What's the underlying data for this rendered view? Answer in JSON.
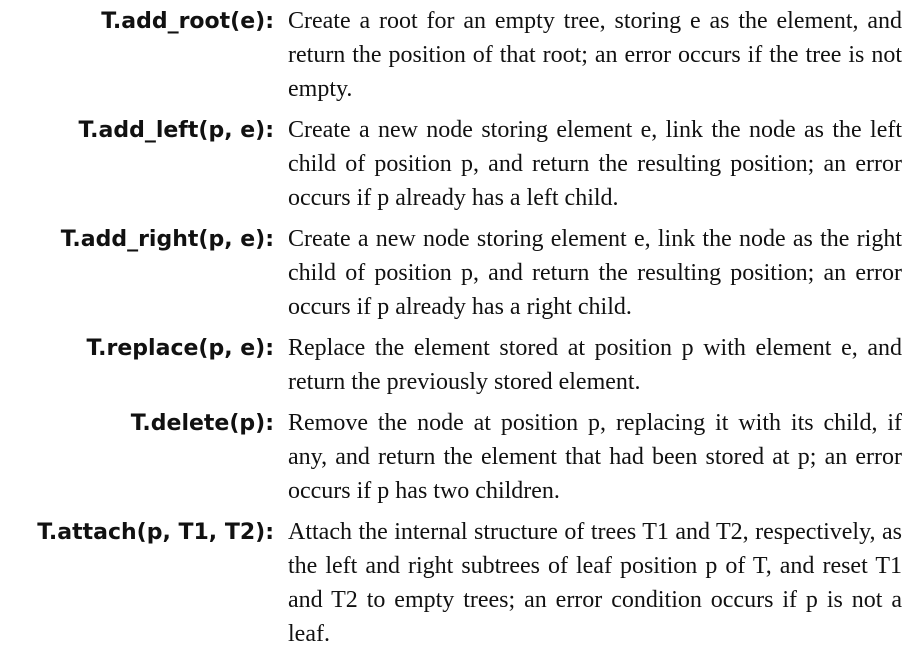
{
  "entries": [
    {
      "term": "T.add_root(e):",
      "description": "Create a root for an empty tree, storing e as the element, and return the position of that root; an error occurs if the tree is not empty."
    },
    {
      "term": "T.add_left(p, e):",
      "description": "Create a new node storing element e, link the node as the left child of position p, and return the resulting position; an error occurs if p already has a left child."
    },
    {
      "term": "T.add_right(p, e):",
      "description": "Create a new node storing element e, link the node as the right child of position p, and return the resulting position; an error occurs if p already has a right child."
    },
    {
      "term": "T.replace(p, e):",
      "description": "Replace the element stored at position p with element e, and return the previously stored element."
    },
    {
      "term": "T.delete(p):",
      "description": "Remove the node at position p, replacing it with its child, if any, and return the element that had been stored at p; an error occurs if p has two children."
    },
    {
      "term": "T.attach(p, T1, T2):",
      "description": "Attach the internal structure of trees T1 and T2, respectively, as the left and right subtrees of leaf position p of T, and reset T1 and T2 to empty trees; an error condition occurs if p is not a leaf."
    }
  ]
}
